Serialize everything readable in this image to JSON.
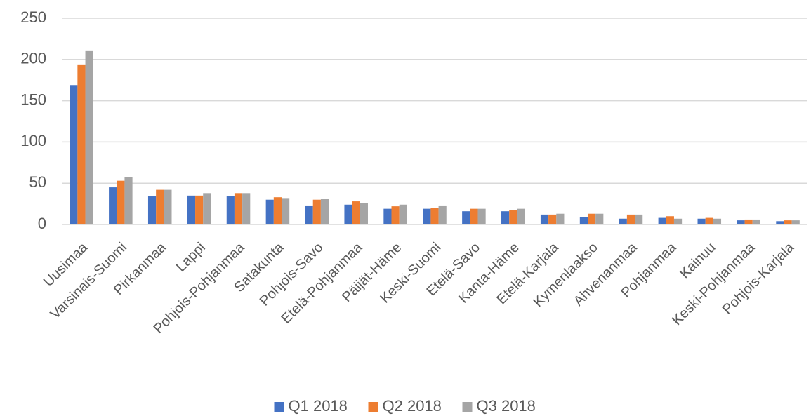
{
  "chart_data": {
    "type": "bar",
    "categories": [
      "Uusimaa",
      "Varsinais-Suomi",
      "Pirkanmaa",
      "Lappi",
      "Pohjois-Pohjanmaa",
      "Satakunta",
      "Pohjois-Savo",
      "Etelä-Pohjanmaa",
      "Päijät-Häme",
      "Keski-Suomi",
      "Etelä-Savo",
      "Kanta-Häme",
      "Etelä-Karjala",
      "Kymenlaakso",
      "Ahvenanmaa",
      "Pohjanmaa",
      "Kainuu",
      "Keski-Pohjanmaa",
      "Pohjois-Karjala"
    ],
    "series": [
      {
        "name": "Q1 2018",
        "color": "#4472c4",
        "values": [
          169,
          45,
          34,
          35,
          34,
          30,
          23,
          24,
          19,
          19,
          16,
          16,
          12,
          9,
          7,
          8,
          7,
          5,
          4
        ]
      },
      {
        "name": "Q2 2018",
        "color": "#ed7d31",
        "values": [
          194,
          53,
          42,
          35,
          38,
          33,
          30,
          28,
          22,
          20,
          19,
          17,
          12,
          13,
          12,
          10,
          8,
          6,
          5
        ]
      },
      {
        "name": "Q3 2018",
        "color": "#a5a5a5",
        "values": [
          211,
          57,
          42,
          38,
          38,
          32,
          31,
          26,
          24,
          23,
          19,
          19,
          13,
          13,
          12,
          7,
          7,
          6,
          5
        ]
      }
    ],
    "ylim": [
      0,
      250
    ],
    "yticks": [
      0,
      50,
      100,
      150,
      200,
      250
    ],
    "grid": true,
    "legend": "bottom"
  }
}
